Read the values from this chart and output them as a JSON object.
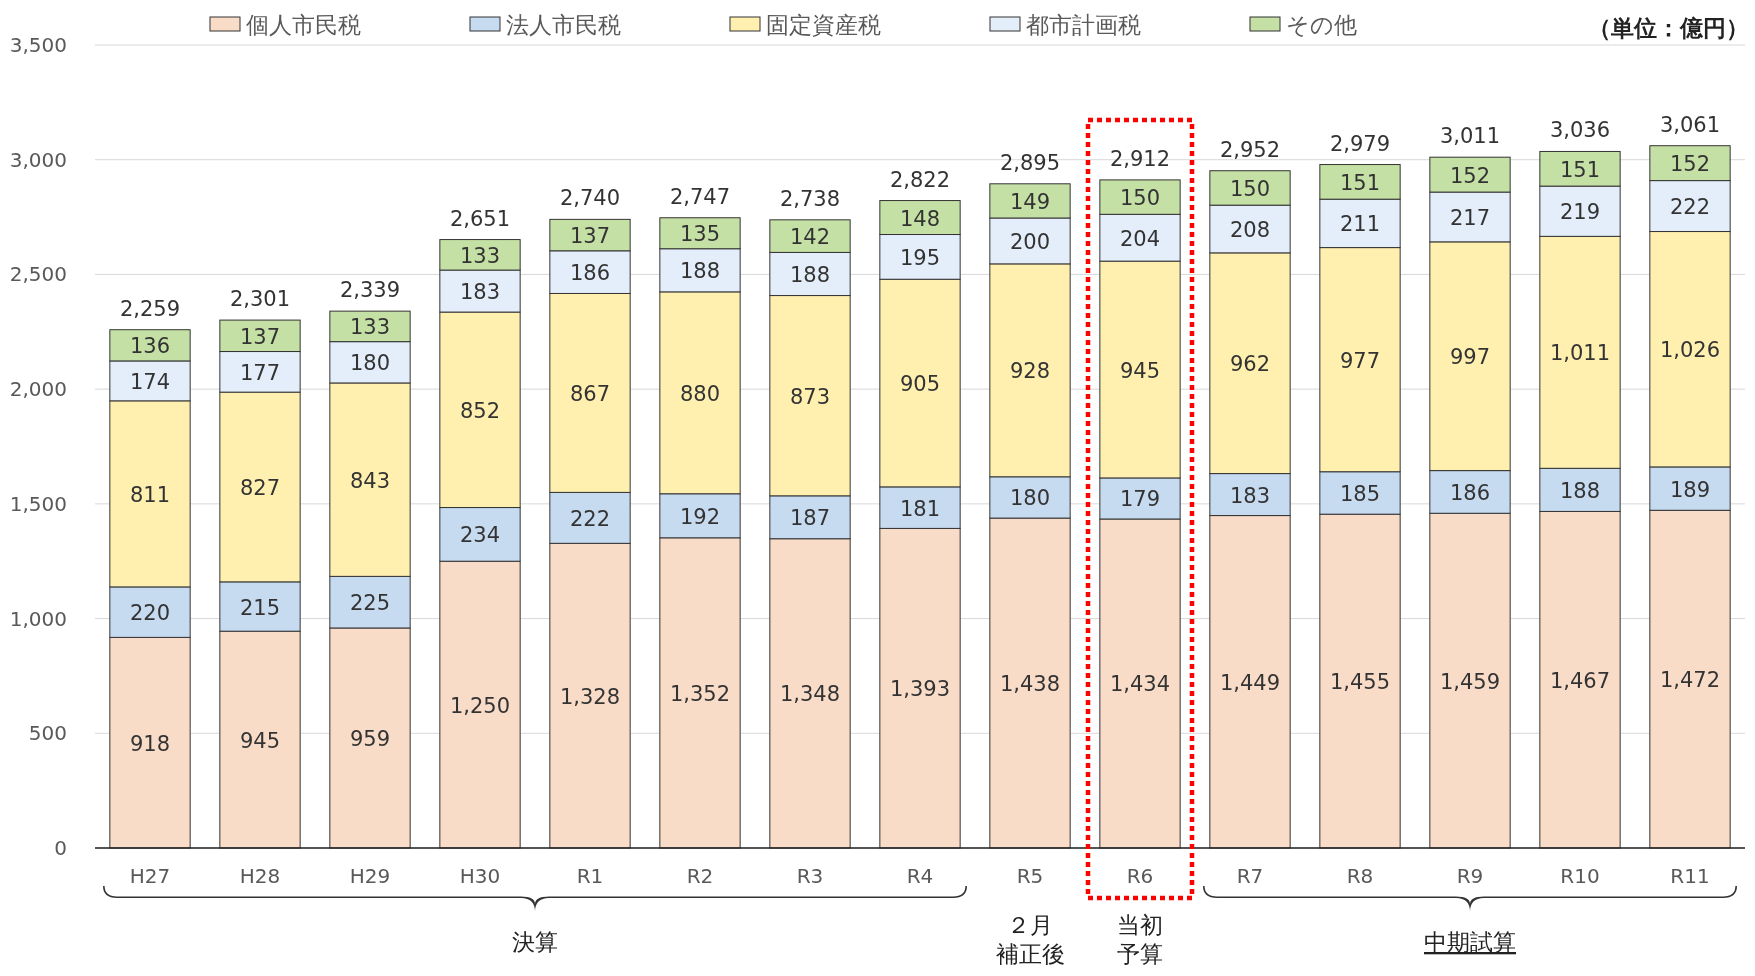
{
  "chart_data": {
    "type": "bar",
    "stacked": true,
    "categories": [
      "H27",
      "H28",
      "H29",
      "H30",
      "R1",
      "R2",
      "R3",
      "R4",
      "R5",
      "R6",
      "R7",
      "R8",
      "R9",
      "R10",
      "R11"
    ],
    "series": [
      {
        "name": "個人市民税",
        "color": "#f9dcc8",
        "values": [
          918,
          945,
          959,
          1250,
          1328,
          1352,
          1348,
          1393,
          1438,
          1434,
          1449,
          1455,
          1459,
          1467,
          1472
        ],
        "value_labels": [
          "918",
          "945",
          "959",
          "1,250",
          "1,328",
          "1,352",
          "1,348",
          "1,393",
          "1,438",
          "1,434",
          "1,449",
          "1,455",
          "1,459",
          "1,467",
          "1,472"
        ]
      },
      {
        "name": "法人市民税",
        "color": "#c6daf0",
        "values": [
          220,
          215,
          225,
          234,
          222,
          192,
          187,
          181,
          180,
          179,
          183,
          185,
          186,
          188,
          189
        ],
        "value_labels": [
          "220",
          "215",
          "225",
          "234",
          "222",
          "192",
          "187",
          "181",
          "180",
          "179",
          "183",
          "185",
          "186",
          "188",
          "189"
        ]
      },
      {
        "name": "固定資産税",
        "color": "#fff0b0",
        "values": [
          811,
          827,
          843,
          852,
          867,
          880,
          873,
          905,
          928,
          945,
          962,
          977,
          997,
          1011,
          1026
        ],
        "value_labels": [
          "811",
          "827",
          "843",
          "852",
          "867",
          "880",
          "873",
          "905",
          "928",
          "945",
          "962",
          "977",
          "997",
          "1,011",
          "1,026"
        ]
      },
      {
        "name": "都市計画税",
        "color": "#e4eefa",
        "values": [
          174,
          177,
          180,
          183,
          186,
          188,
          188,
          195,
          200,
          204,
          208,
          211,
          217,
          219,
          222
        ],
        "value_labels": [
          "174",
          "177",
          "180",
          "183",
          "186",
          "188",
          "188",
          "195",
          "200",
          "204",
          "208",
          "211",
          "217",
          "219",
          "222"
        ]
      },
      {
        "name": "その他",
        "color": "#c5e0a5",
        "values": [
          136,
          137,
          133,
          133,
          137,
          135,
          142,
          148,
          149,
          150,
          150,
          151,
          152,
          151,
          152
        ],
        "value_labels": [
          "136",
          "137",
          "133",
          "133",
          "137",
          "135",
          "142",
          "148",
          "149",
          "150",
          "150",
          "151",
          "152",
          "151",
          "152"
        ]
      }
    ],
    "totals": [
      "2,259",
      "2,301",
      "2,339",
      "2,651",
      "2,740",
      "2,747",
      "2,738",
      "2,822",
      "2,895",
      "2,912",
      "2,952",
      "2,979",
      "3,011",
      "3,036",
      "3,061"
    ],
    "ylim": [
      0,
      3500
    ],
    "yticks": [
      0,
      500,
      {
        "value": 1000,
        "label": "1,000"
      },
      {
        "value": 1500,
        "label": "1,500"
      },
      {
        "value": 2000,
        "label": "2,000"
      },
      {
        "value": 2500,
        "label": "2,500"
      },
      {
        "value": 3000,
        "label": "3,000"
      },
      {
        "value": 3500,
        "label": "3,500"
      }
    ],
    "grid": "y",
    "legend": "top",
    "annotations": [
      "（単位：億円）",
      "決算",
      "２月補正後",
      "当初予算",
      "中期試算"
    ]
  }
}
